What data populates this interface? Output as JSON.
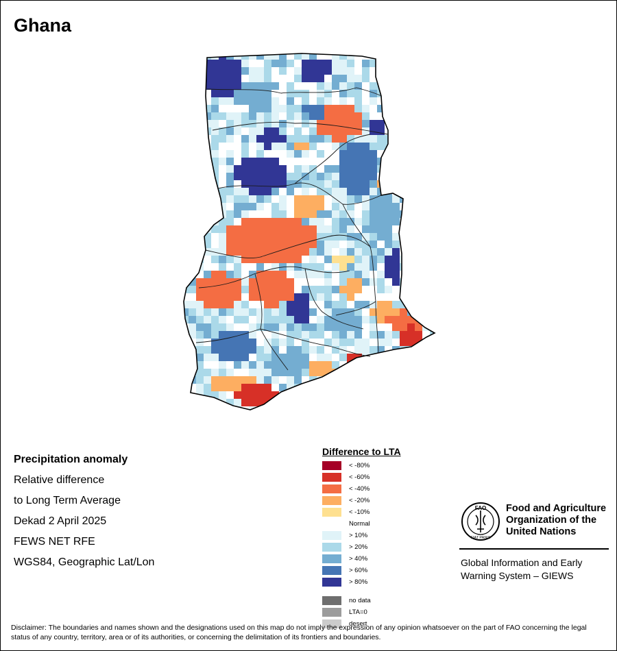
{
  "map": {
    "country_title": "Ghana",
    "info": {
      "heading": "Precipitation anomaly",
      "line1": "Relative difference",
      "line2": "to Long Term Average",
      "period": "Dekad 2 April 2025",
      "source": "FEWS NET RFE",
      "projection": "WGS84, Geographic Lat/Lon"
    },
    "legend": {
      "title": "Difference to LTA",
      "classes": [
        {
          "label": "< -80%",
          "color": "#a50026"
        },
        {
          "label": "< -60%",
          "color": "#d73027"
        },
        {
          "label": "< -40%",
          "color": "#f46d43"
        },
        {
          "label": "< -20%",
          "color": "#fdae61"
        },
        {
          "label": "< -10%",
          "color": "#fee090"
        },
        {
          "label": "Normal",
          "color": "#ffffff"
        },
        {
          "label": "> 10%",
          "color": "#e0f3f8"
        },
        {
          "label": "> 20%",
          "color": "#abd9e9"
        },
        {
          "label": "> 40%",
          "color": "#74add1"
        },
        {
          "label": "> 60%",
          "color": "#4575b4"
        },
        {
          "label": "> 80%",
          "color": "#313695"
        }
      ],
      "extra_classes": [
        {
          "label": "no data",
          "color": "#6e6e6e"
        },
        {
          "label": "LTA=0",
          "color": "#9c9c9c"
        },
        {
          "label": "desert",
          "color": "#cccccc"
        }
      ]
    },
    "organization": {
      "name_line1": "Food and Agriculture",
      "name_line2": "Organization of the",
      "name_line3": "United Nations",
      "logo_text": "FAO",
      "logo_motto": "FIAT PANIS",
      "system_line1": "Global Information and Early",
      "system_line2": "Warning System – GIEWS"
    },
    "disclaimer": "Disclaimer: The boundaries and names shown and the designations used on this map do not imply the expression of any opinion whatsoever on the part of FAO concerning the legal status of any country, territory, area or of its authorities, or concerning the delimitation of its frontiers and boundaries."
  }
}
